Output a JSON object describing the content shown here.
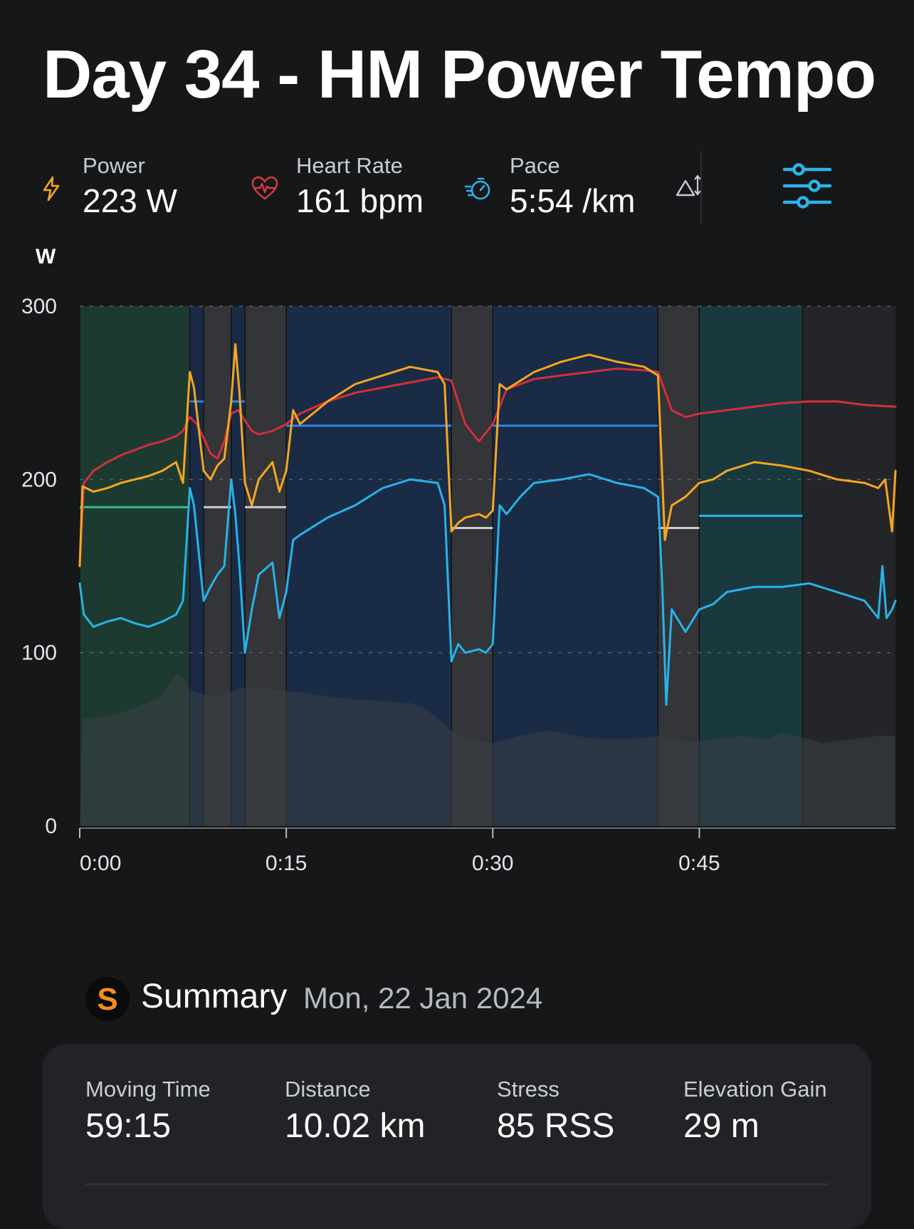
{
  "workout": {
    "title": "Day 34 - HM Power Tempo"
  },
  "metrics": {
    "power": {
      "label": "Power",
      "value": "223 W",
      "icon": "bolt-icon",
      "color": "#f5a623"
    },
    "heart_rate": {
      "label": "Heart Rate",
      "value": "161 bpm",
      "icon": "heart-pulse-icon",
      "color": "#d93a45"
    },
    "pace": {
      "label": "Pace",
      "value": "5:54 /km",
      "icon": "stopwatch-icon",
      "color": "#2cb4ea"
    },
    "elevation_icon": "elevation-icon",
    "settings_icon": "sliders-icon"
  },
  "chart_data": {
    "type": "line",
    "ylabel": "W",
    "ylim": [
      0,
      300
    ],
    "y_ticks": [
      "0",
      "100",
      "200",
      "300"
    ],
    "x_ticks": [
      "0:00",
      "0:15",
      "0:30",
      "0:45"
    ],
    "x_tick_minutes": [
      0,
      15,
      30,
      45
    ],
    "xlim_minutes": [
      0,
      59.25
    ],
    "grid": true,
    "intervals": [
      {
        "start_min": 0,
        "end_min": 8,
        "target_w": 184,
        "zone": "warmup"
      },
      {
        "start_min": 8,
        "end_min": 9,
        "target_w": 245,
        "zone": "work"
      },
      {
        "start_min": 9,
        "end_min": 11,
        "target_w": 184,
        "zone": "recovery"
      },
      {
        "start_min": 11,
        "end_min": 12,
        "target_w": 245,
        "zone": "work"
      },
      {
        "start_min": 12,
        "end_min": 15,
        "target_w": 184,
        "zone": "recovery"
      },
      {
        "start_min": 15,
        "end_min": 27,
        "target_w": 231,
        "zone": "work"
      },
      {
        "start_min": 27,
        "end_min": 30,
        "target_w": 172,
        "zone": "recovery"
      },
      {
        "start_min": 30,
        "end_min": 42,
        "target_w": 231,
        "zone": "work"
      },
      {
        "start_min": 42,
        "end_min": 45,
        "target_w": 172,
        "zone": "recovery"
      },
      {
        "start_min": 45,
        "end_min": 52.5,
        "target_w": 179,
        "zone": "cooldown"
      },
      {
        "start_min": 52.5,
        "end_min": 59.25,
        "target_w": null,
        "zone": "open"
      }
    ],
    "series": [
      {
        "key": "heart_rate",
        "color": "#d12f3c",
        "x": [
          0,
          0.3,
          1,
          2,
          3,
          4,
          5,
          6,
          7,
          7.5,
          8,
          8.5,
          9,
          9.5,
          10,
          10.5,
          11,
          11.5,
          12,
          12.5,
          13,
          14,
          15,
          16,
          18,
          20,
          22,
          24,
          26,
          27,
          28,
          29,
          30,
          31,
          33,
          35,
          37,
          39,
          41,
          42,
          43,
          44,
          45,
          47,
          49,
          51,
          53,
          55,
          57,
          59.25
        ],
        "values": [
          150,
          198,
          205,
          210,
          214,
          217,
          220,
          222,
          225,
          228,
          236,
          232,
          224,
          215,
          212,
          222,
          238,
          240,
          234,
          228,
          226,
          228,
          232,
          238,
          245,
          250,
          253,
          256,
          259,
          257,
          232,
          222,
          232,
          252,
          258,
          260,
          262,
          264,
          263,
          262,
          240,
          236,
          238,
          240,
          242,
          244,
          245,
          245,
          243,
          242
        ]
      },
      {
        "key": "power",
        "color": "#f5a623",
        "x": [
          0,
          0.2,
          1,
          2,
          3,
          4,
          5,
          6,
          7,
          7.5,
          8,
          8.3,
          9,
          9.5,
          10,
          10.5,
          11,
          11.3,
          11.6,
          12,
          12.5,
          13,
          14,
          14.5,
          15,
          15.5,
          16,
          18,
          20,
          22,
          24,
          26,
          26.5,
          27,
          27.5,
          28,
          29,
          29.5,
          30,
          30.5,
          31,
          33,
          35,
          37,
          39,
          41,
          42,
          42.5,
          43,
          44,
          45,
          46,
          47,
          49,
          51,
          53,
          55,
          57,
          58,
          58.5,
          59,
          59.25
        ],
        "values": [
          150,
          196,
          193,
          195,
          198,
          200,
          202,
          205,
          210,
          198,
          262,
          253,
          205,
          200,
          208,
          212,
          245,
          278,
          250,
          198,
          185,
          200,
          210,
          193,
          205,
          240,
          232,
          245,
          255,
          260,
          265,
          262,
          255,
          170,
          175,
          178,
          180,
          178,
          182,
          255,
          252,
          262,
          268,
          272,
          268,
          265,
          260,
          165,
          185,
          190,
          198,
          200,
          205,
          210,
          208,
          205,
          200,
          198,
          195,
          200,
          170,
          205
        ]
      },
      {
        "key": "pace",
        "color": "#27b3e8",
        "x": [
          0,
          0.3,
          1,
          2,
          3,
          4,
          5,
          6,
          7,
          7.5,
          8,
          8.3,
          9,
          9.5,
          10,
          10.5,
          11,
          11.3,
          11.6,
          12,
          12.5,
          13,
          14,
          14.5,
          15,
          15.5,
          16,
          18,
          20,
          22,
          24,
          26,
          26.5,
          27,
          27.5,
          28,
          29,
          29.5,
          30,
          30.5,
          31,
          32,
          33,
          35,
          37,
          39,
          41,
          42,
          42.3,
          42.6,
          43,
          44,
          45,
          46,
          47,
          49,
          51,
          53,
          55,
          57,
          58,
          58.3,
          58.6,
          59,
          59.25
        ],
        "values": [
          140,
          122,
          115,
          118,
          120,
          117,
          115,
          118,
          122,
          130,
          195,
          185,
          130,
          138,
          145,
          150,
          200,
          180,
          150,
          100,
          125,
          145,
          152,
          120,
          135,
          165,
          168,
          178,
          185,
          195,
          200,
          198,
          185,
          95,
          105,
          100,
          102,
          100,
          105,
          185,
          180,
          190,
          198,
          200,
          203,
          198,
          195,
          190,
          140,
          70,
          125,
          112,
          125,
          128,
          135,
          138,
          138,
          140,
          135,
          130,
          120,
          150,
          120,
          125,
          130
        ]
      },
      {
        "key": "elevation",
        "color": "#3b4046",
        "x": [
          0,
          0.2,
          2,
          4,
          6,
          7,
          7.5,
          8,
          9,
          10,
          12,
          14,
          16,
          18,
          20,
          22,
          24,
          25,
          26,
          27,
          28,
          30,
          32,
          34,
          36,
          38,
          40,
          42,
          44,
          46,
          48,
          50,
          51,
          52,
          54,
          56,
          58,
          59.25
        ],
        "values": [
          0,
          62,
          63,
          68,
          75,
          88,
          86,
          78,
          76,
          75,
          80,
          79,
          77,
          75,
          73,
          72,
          71,
          68,
          62,
          55,
          50,
          48,
          52,
          55,
          52,
          50,
          50,
          52,
          48,
          50,
          52,
          50,
          54,
          52,
          48,
          50,
          52,
          52
        ]
      }
    ]
  },
  "summary": {
    "badge": "S",
    "title": "Summary",
    "date": "Mon, 22 Jan 2024",
    "stats": [
      {
        "label": "Moving Time",
        "value": "59:15"
      },
      {
        "label": "Distance",
        "value": "10.02 km"
      },
      {
        "label": "Stress",
        "value": "85 RSS"
      },
      {
        "label": "Elevation Gain",
        "value": "29 m"
      }
    ]
  }
}
